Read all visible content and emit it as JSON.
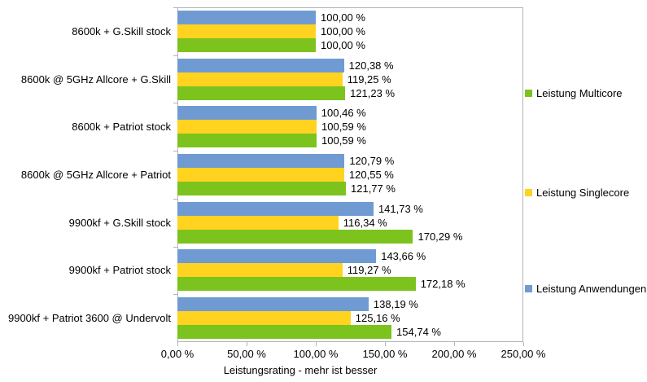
{
  "chart_data": {
    "type": "bar",
    "orientation": "horizontal",
    "xlabel": "Leistungsrating - mehr ist besser",
    "xlim": [
      0,
      250
    ],
    "x_ticks": [
      0,
      50,
      100,
      150,
      200,
      250
    ],
    "x_tick_labels": [
      "0,00 %",
      "50,00 %",
      "100,00 %",
      "150,00 %",
      "200,00 %",
      "250,00 %"
    ],
    "grid": false,
    "legend_position": "right",
    "categories": [
      "8600k + G.Skill stock",
      "8600k @ 5GHz Allcore + G.Skill",
      "8600k + Patriot stock",
      "8600k @ 5GHz Allcore + Patriot",
      "9900kf + G.Skill stock",
      "9900kf + Patriot stock",
      "9900kf + Patriot 3600 @ Undervolt"
    ],
    "series": [
      {
        "name": "Leistung Multicore",
        "color": "#7cc31e",
        "values": [
          100.0,
          121.23,
          100.59,
          121.77,
          170.29,
          172.18,
          154.74
        ],
        "labels": [
          "100,00 %",
          "121,23 %",
          "100,59 %",
          "121,77 %",
          "170,29 %",
          "172,18 %",
          "154,74 %"
        ]
      },
      {
        "name": "Leistung Singlecore",
        "color": "#ffd320",
        "values": [
          100.0,
          119.25,
          100.59,
          120.55,
          116.34,
          119.27,
          125.16
        ],
        "labels": [
          "100,00 %",
          "119,25 %",
          "100,59 %",
          "120,55 %",
          "116,34 %",
          "119,27 %",
          "125,16 %"
        ]
      },
      {
        "name": "Leistung Anwendungen",
        "color": "#6f9bd2",
        "values": [
          100.0,
          120.38,
          100.46,
          120.79,
          141.73,
          143.66,
          138.19
        ],
        "labels": [
          "100,00 %",
          "120,38 %",
          "100,46 %",
          "120,79 %",
          "141,73 %",
          "143,66 %",
          "138,19 %"
        ]
      }
    ],
    "bar_order_top_to_bottom": [
      "Leistung Anwendungen",
      "Leistung Singlecore",
      "Leistung Multicore"
    ]
  },
  "colors": {
    "axis_line": "#b3b3b3",
    "text": "#000000",
    "background": "#ffffff"
  }
}
